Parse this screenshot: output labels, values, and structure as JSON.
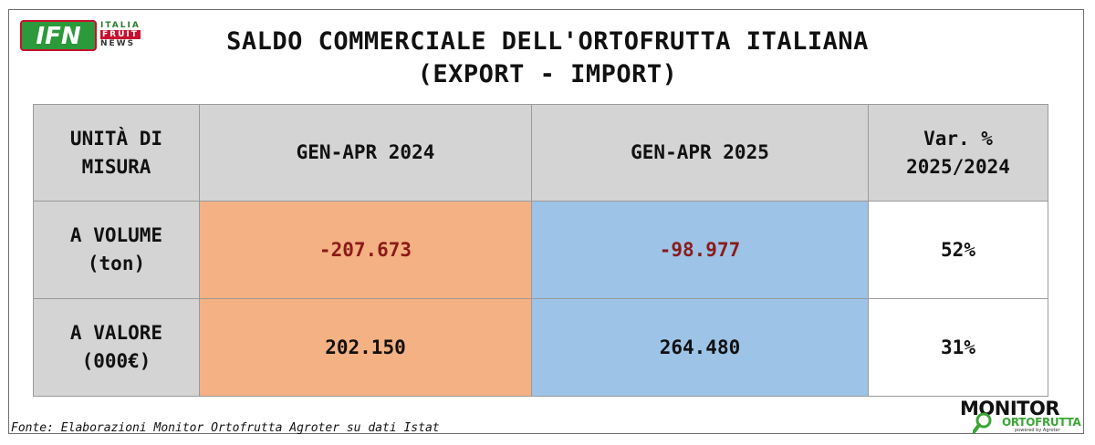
{
  "logo": {
    "mark": "IFN",
    "line1": "ITALIA",
    "line2": "FRUIT",
    "line3": "NEWS"
  },
  "title": {
    "line1": "SALDO COMMERCIALE DELL'ORTOFRUTTA ITALIANA",
    "line2": "(EXPORT - IMPORT)"
  },
  "table": {
    "headers": {
      "unit": [
        "UNITÀ DI",
        "MISURA"
      ],
      "period1": "GEN-APR 2024",
      "period2": "GEN-APR 2025",
      "var": [
        "Var. %",
        "2025/2024"
      ]
    },
    "rows": [
      {
        "label": [
          "A VOLUME",
          "(ton)"
        ],
        "v2024": "-207.673",
        "v2025": "-98.977",
        "var": "52%"
      },
      {
        "label": [
          "A VALORE",
          "(000€)"
        ],
        "v2024": "202.150",
        "v2025": "264.480",
        "var": "31%"
      }
    ]
  },
  "colors": {
    "col2024": "#f4b183",
    "col2025": "#9dc3e6",
    "negative": "#8b1a1a",
    "header": "#d4d4d4"
  },
  "source": "Fonte: Elaborazioni Monitor Ortofrutta Agroter su dati Istat",
  "monitor_logo": {
    "word1": "MONITOR",
    "word2": "ORTOFRUTTA",
    "tag": "powered by Agroter",
    "icon": "magnifier-icon"
  }
}
